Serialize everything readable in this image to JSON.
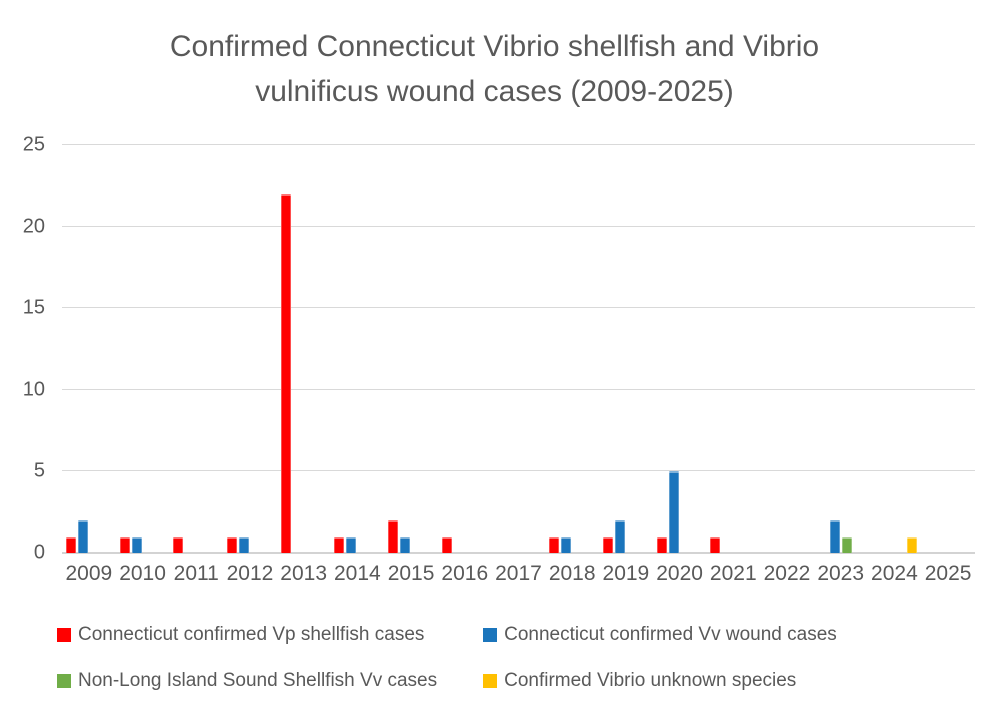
{
  "chart_data": {
    "type": "bar",
    "title": "Confirmed Connecticut Vibrio shellfish and Vibrio vulnificus wound cases (2009-2025)",
    "title_lines": [
      "Confirmed Connecticut Vibrio shellfish and Vibrio",
      "vulnificus wound cases (2009-2025)"
    ],
    "categories": [
      "2009",
      "2010",
      "2011",
      "2012",
      "2013",
      "2014",
      "2015",
      "2016",
      "2017",
      "2018",
      "2019",
      "2020",
      "2021",
      "2022",
      "2023",
      "2024",
      "2025"
    ],
    "series": [
      {
        "key": "vp-shellfish",
        "name": "Connecticut confirmed Vp shellfish cases",
        "color": "#FF0000",
        "values": [
          1,
          1,
          1,
          1,
          22,
          1,
          2,
          1,
          0,
          1,
          1,
          1,
          1,
          0,
          0,
          0,
          0
        ]
      },
      {
        "key": "vv-wound",
        "name": "Connecticut confirmed Vv wound cases",
        "color": "#1B75BC",
        "values": [
          2,
          1,
          0,
          1,
          0,
          1,
          1,
          0,
          0,
          1,
          2,
          5,
          0,
          0,
          2,
          0,
          0
        ]
      },
      {
        "key": "non-lis-shellfish-vv",
        "name": "Non-Long Island Sound Shellfish Vv cases",
        "color": "#70AD47",
        "values": [
          0,
          0,
          0,
          0,
          0,
          0,
          0,
          0,
          0,
          0,
          0,
          0,
          0,
          0,
          1,
          0,
          0
        ]
      },
      {
        "key": "vibrio-unknown",
        "name": "Confirmed Vibrio unknown species",
        "color": "#FFC000",
        "values": [
          0,
          0,
          0,
          0,
          0,
          0,
          0,
          0,
          0,
          0,
          0,
          0,
          0,
          0,
          0,
          1,
          0
        ]
      }
    ],
    "xlabel": "",
    "ylabel": "",
    "ylim": [
      0,
      25
    ],
    "yticks": [
      0,
      5,
      10,
      15,
      20,
      25
    ],
    "grid": true,
    "legend_position": "bottom",
    "text_color": "#595959",
    "gridline_color": "#D9D9D9",
    "background": "#FFFFFF"
  }
}
